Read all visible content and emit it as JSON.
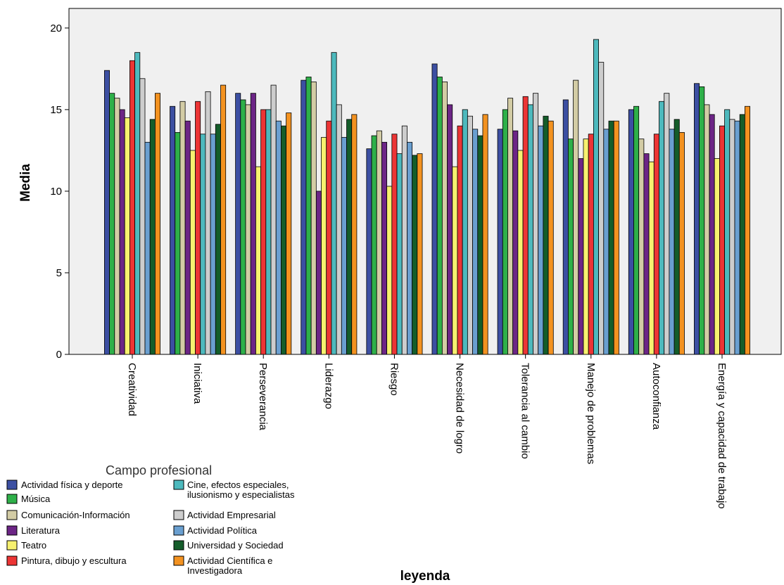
{
  "chart_data": {
    "type": "bar",
    "title": "",
    "xlabel": "leyenda",
    "ylabel": "Media",
    "ylim": [
      0,
      21.2
    ],
    "yticks": [
      0,
      5,
      10,
      15,
      20
    ],
    "grid": false,
    "legend_placement": "bottom-left",
    "legend_title": "Campo profesional",
    "categories": [
      "Creatividad",
      "Iniciativa",
      "Perseverancia",
      "Liderazgo",
      "Riesgo",
      "Necesidad de logro",
      "Tolerancia al cambio",
      "Manejo de problemas",
      "Autoconfianza",
      "Energía y capacidad de trabajo"
    ],
    "series": [
      {
        "name": "Actividad física y deporte",
        "color": "#3c4fa2",
        "values": [
          17.4,
          15.2,
          16.0,
          16.8,
          12.6,
          17.8,
          13.8,
          15.6,
          15.0,
          16.6
        ]
      },
      {
        "name": "Música",
        "color": "#2eb049",
        "values": [
          16.0,
          13.6,
          15.6,
          17.0,
          13.4,
          17.0,
          15.0,
          13.2,
          15.2,
          16.4
        ]
      },
      {
        "name": "Comunicación-Información",
        "color": "#d3cca5",
        "values": [
          15.7,
          15.5,
          15.3,
          16.7,
          13.7,
          16.7,
          15.7,
          16.8,
          13.2,
          15.3
        ]
      },
      {
        "name": "Literatura",
        "color": "#6c2586",
        "values": [
          15.0,
          14.3,
          16.0,
          10.0,
          13.0,
          15.3,
          13.7,
          12.0,
          12.3,
          14.7
        ]
      },
      {
        "name": "Teatro",
        "color": "#f7f16f",
        "values": [
          14.5,
          12.5,
          11.5,
          13.3,
          10.3,
          11.5,
          12.5,
          13.2,
          11.8,
          12.0
        ]
      },
      {
        "name": "Pintura, dibujo y escultura",
        "color": "#ec3535",
        "values": [
          18.0,
          15.5,
          15.0,
          14.3,
          13.5,
          14.0,
          15.8,
          13.5,
          13.5,
          14.0
        ]
      },
      {
        "name": "Cine, efectos especiales, ilusionismo y especialistas",
        "color": "#4db9bd",
        "values": [
          18.5,
          13.5,
          15.0,
          18.5,
          12.3,
          15.0,
          15.3,
          19.3,
          15.5,
          15.0
        ]
      },
      {
        "name": "Actividad Empresarial",
        "color": "#cdcdcd",
        "values": [
          16.9,
          16.1,
          16.5,
          15.3,
          14.0,
          14.6,
          16.0,
          17.9,
          16.0,
          14.4
        ]
      },
      {
        "name": "Actividad Política",
        "color": "#6a9fd0",
        "values": [
          13.0,
          13.5,
          14.3,
          13.3,
          13.0,
          13.8,
          14.0,
          13.8,
          13.8,
          14.3
        ]
      },
      {
        "name": "Universidad y Sociedad",
        "color": "#145d2a",
        "values": [
          14.4,
          14.1,
          14.0,
          14.4,
          12.2,
          13.4,
          14.6,
          14.3,
          14.4,
          14.7
        ]
      },
      {
        "name": "Actividad Científica e Investigadora",
        "color": "#f39220",
        "values": [
          16.0,
          16.5,
          14.8,
          14.7,
          12.3,
          14.7,
          14.3,
          14.3,
          13.6,
          15.2
        ]
      }
    ]
  }
}
